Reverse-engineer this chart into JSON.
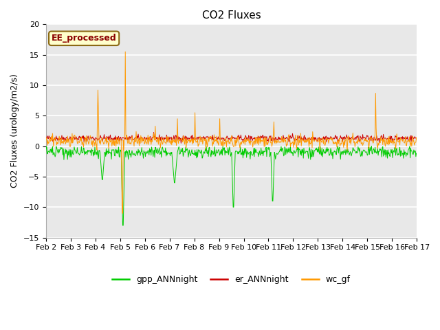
{
  "title": "CO2 Fluxes",
  "ylabel": "CO2 Fluxes (urology/m2/s)",
  "ylim": [
    -15,
    20
  ],
  "yticks": [
    -15,
    -10,
    -5,
    0,
    5,
    10,
    15,
    20
  ],
  "date_labels": [
    "Feb 2",
    "Feb 3",
    "Feb 4",
    "Feb 5",
    "Feb 6",
    "Feb 7",
    "Feb 8",
    "Feb 9",
    "Feb 10",
    "Feb 11",
    "Feb 12",
    "Feb 13",
    "Feb 14",
    "Feb 15",
    "Feb 16",
    "Feb 17"
  ],
  "site_label": "EE_processed",
  "gpp_color": "#00cc00",
  "er_color": "#cc0000",
  "wc_color": "#ff9900",
  "plot_bg_color": "#e8e8e8",
  "fig_bg_color": "#ffffff",
  "grid_color": "#ffffff",
  "site_label_color": "#8b0000",
  "site_label_bg": "#ffffcc",
  "site_label_edge": "#8b6914",
  "legend_labels": [
    "gpp_ANNnight",
    "er_ANNnight",
    "wc_gf"
  ],
  "title_fontsize": 11,
  "label_fontsize": 9,
  "tick_fontsize": 8
}
